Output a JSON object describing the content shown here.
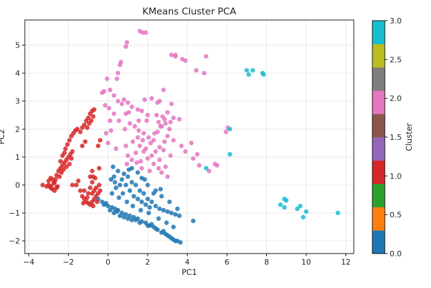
{
  "chart_data": {
    "type": "scatter",
    "title": "KMeans Cluster PCA",
    "xlabel": "PC1",
    "ylabel": "PC2",
    "xlim": [
      -4.2,
      12.4
    ],
    "ylim": [
      -2.45,
      5.9
    ],
    "xticks": [
      -4,
      -2,
      0,
      2,
      4,
      6,
      8,
      10,
      12
    ],
    "yticks": [
      -2,
      -1,
      0,
      1,
      2,
      3,
      4,
      5
    ],
    "grid": true,
    "colorbar": {
      "label": "Cluster",
      "range": [
        0.0,
        3.0
      ],
      "ticks": [
        "0.0",
        "0.5",
        "1.0",
        "1.5",
        "2.0",
        "2.5",
        "3.0"
      ],
      "colors": [
        "#1f77b4",
        "#ff7f0e",
        "#2ca02c",
        "#d62728",
        "#9467bd",
        "#8c564b",
        "#e377c2",
        "#7f7f7f",
        "#bcbd22",
        "#17becf"
      ]
    },
    "series": [
      {
        "cluster": 0,
        "color": "#1f77b4",
        "points": [
          [
            -0.5,
            -0.5
          ],
          [
            -0.3,
            -0.6
          ],
          [
            -0.2,
            -0.7
          ],
          [
            0.0,
            -0.75
          ],
          [
            0.2,
            -0.8
          ],
          [
            0.35,
            -0.85
          ],
          [
            0.5,
            -0.9
          ],
          [
            0.7,
            -1.0
          ],
          [
            0.9,
            -1.05
          ],
          [
            1.1,
            -1.1
          ],
          [
            1.3,
            -1.15
          ],
          [
            1.5,
            -1.2
          ],
          [
            1.7,
            -1.3
          ],
          [
            1.9,
            -1.35
          ],
          [
            2.1,
            -1.45
          ],
          [
            2.3,
            -1.5
          ],
          [
            2.5,
            -1.6
          ],
          [
            2.7,
            -1.7
          ],
          [
            2.9,
            -1.75
          ],
          [
            3.1,
            -1.85
          ],
          [
            3.3,
            -1.95
          ],
          [
            3.5,
            -2.0
          ],
          [
            3.65,
            -2.05
          ],
          [
            0.1,
            -0.9
          ],
          [
            0.3,
            -1.0
          ],
          [
            0.6,
            -1.1
          ],
          [
            0.8,
            -1.15
          ],
          [
            1.0,
            -1.2
          ],
          [
            1.2,
            -1.25
          ],
          [
            1.6,
            -1.35
          ],
          [
            2.0,
            -1.45
          ],
          [
            2.4,
            -1.55
          ],
          [
            2.8,
            -1.65
          ],
          [
            3.0,
            -1.8
          ],
          [
            3.2,
            -1.9
          ],
          [
            3.4,
            -2.0
          ],
          [
            -0.1,
            -0.65
          ],
          [
            0.45,
            -0.95
          ],
          [
            1.4,
            -1.25
          ],
          [
            2.2,
            -1.4
          ],
          [
            0.2,
            -0.3
          ],
          [
            0.4,
            -0.1
          ],
          [
            0.6,
            0.0
          ],
          [
            0.3,
            0.3
          ],
          [
            0.5,
            0.5
          ],
          [
            0.7,
            0.2
          ],
          [
            0.9,
            0.0
          ],
          [
            1.1,
            -0.2
          ],
          [
            1.3,
            -0.4
          ],
          [
            1.5,
            -0.5
          ],
          [
            1.7,
            -0.6
          ],
          [
            1.9,
            -0.7
          ],
          [
            2.1,
            -0.8
          ],
          [
            0.8,
            0.4
          ],
          [
            1.0,
            0.3
          ],
          [
            1.2,
            0.1
          ],
          [
            1.4,
            0.0
          ],
          [
            1.6,
            -0.2
          ],
          [
            1.8,
            -0.3
          ],
          [
            2.0,
            -0.5
          ],
          [
            2.2,
            -0.6
          ],
          [
            2.4,
            -0.75
          ],
          [
            2.6,
            -0.85
          ],
          [
            2.8,
            -0.9
          ],
          [
            3.0,
            -0.95
          ],
          [
            3.2,
            -1.0
          ],
          [
            3.4,
            -1.05
          ],
          [
            3.6,
            -1.1
          ],
          [
            0.25,
            0.65
          ],
          [
            1.2,
            0.6
          ],
          [
            1.5,
            0.45
          ],
          [
            1.7,
            0.25
          ],
          [
            2.0,
            0.0
          ],
          [
            2.4,
            -0.2
          ],
          [
            2.7,
            -0.4
          ],
          [
            3.1,
            -0.6
          ],
          [
            3.5,
            -0.85
          ],
          [
            0.35,
            0.1
          ],
          [
            0.55,
            -0.45
          ],
          [
            0.95,
            -0.6
          ],
          [
            1.25,
            -0.75
          ],
          [
            1.65,
            -0.9
          ],
          [
            2.05,
            -1.0
          ],
          [
            2.55,
            -1.2
          ],
          [
            2.95,
            -1.35
          ],
          [
            3.3,
            -1.5
          ],
          [
            0.15,
            0.2
          ],
          [
            0.75,
            -0.3
          ],
          [
            1.05,
            0.55
          ],
          [
            1.85,
            0.2
          ],
          [
            2.3,
            -0.3
          ],
          [
            2.65,
            -0.15
          ],
          [
            4.3,
            -1.28
          ]
        ]
      },
      {
        "cluster": 1,
        "color": "#d62728",
        "points": [
          [
            -3.3,
            0.0
          ],
          [
            -3.1,
            -0.05
          ],
          [
            -3.0,
            0.0
          ],
          [
            -2.9,
            -0.1
          ],
          [
            -2.8,
            -0.15
          ],
          [
            -2.7,
            -0.2
          ],
          [
            -2.6,
            -0.1
          ],
          [
            -2.7,
            0.1
          ],
          [
            -2.8,
            0.2
          ],
          [
            -2.9,
            0.25
          ],
          [
            -2.6,
            0.35
          ],
          [
            -2.5,
            0.5
          ],
          [
            -2.4,
            0.6
          ],
          [
            -2.3,
            0.7
          ],
          [
            -2.2,
            0.8
          ],
          [
            -2.1,
            0.9
          ],
          [
            -2.0,
            1.0
          ],
          [
            -1.9,
            1.1
          ],
          [
            -1.8,
            1.2
          ],
          [
            -2.15,
            1.3
          ],
          [
            -2.05,
            1.45
          ],
          [
            -1.95,
            1.6
          ],
          [
            -1.85,
            1.75
          ],
          [
            -1.75,
            1.85
          ],
          [
            -1.65,
            1.95
          ],
          [
            -1.55,
            2.0
          ],
          [
            -1.4,
            1.9
          ],
          [
            -1.3,
            2.05
          ],
          [
            -1.2,
            2.15
          ],
          [
            -1.1,
            2.3
          ],
          [
            -1.0,
            2.4
          ],
          [
            -0.9,
            2.55
          ],
          [
            -0.8,
            2.65
          ],
          [
            -0.7,
            2.7
          ],
          [
            -0.75,
            2.45
          ],
          [
            -0.85,
            2.3
          ],
          [
            -0.95,
            2.2
          ],
          [
            -1.05,
            2.05
          ],
          [
            -1.3,
            1.4
          ],
          [
            -1.15,
            1.55
          ],
          [
            -0.5,
            1.4
          ],
          [
            -0.4,
            1.6
          ],
          [
            -3.0,
            0.15
          ],
          [
            -2.9,
            -0.05
          ],
          [
            -2.75,
            0.05
          ],
          [
            -2.65,
            0.2
          ],
          [
            -2.55,
            -0.05
          ],
          [
            -2.45,
            0.3
          ],
          [
            -2.35,
            0.45
          ],
          [
            -2.25,
            0.55
          ],
          [
            -2.1,
            0.65
          ],
          [
            -1.95,
            0.75
          ],
          [
            -1.85,
            0.95
          ],
          [
            -2.3,
            1.05
          ],
          [
            -2.2,
            1.15
          ],
          [
            -2.4,
            0.85
          ],
          [
            -1.3,
            -0.4
          ],
          [
            -1.2,
            -0.5
          ],
          [
            -1.1,
            -0.6
          ],
          [
            -1.0,
            -0.65
          ],
          [
            -0.9,
            -0.7
          ],
          [
            -0.8,
            -0.6
          ],
          [
            -0.7,
            -0.5
          ],
          [
            -0.6,
            -0.4
          ],
          [
            -0.8,
            -0.3
          ],
          [
            -1.0,
            -0.3
          ],
          [
            -0.9,
            -0.1
          ],
          [
            -0.7,
            -0.2
          ],
          [
            -0.5,
            -0.3
          ],
          [
            -0.6,
            -0.1
          ],
          [
            -0.8,
            0.1
          ],
          [
            -0.9,
            0.3
          ],
          [
            -0.65,
            0.25
          ],
          [
            -0.45,
            0.0
          ],
          [
            -1.6,
            0.0
          ],
          [
            -1.8,
            0.0
          ],
          [
            -1.4,
            -0.2
          ],
          [
            -1.5,
            0.15
          ],
          [
            -1.2,
            -0.2
          ],
          [
            -1.05,
            -0.45
          ],
          [
            -0.75,
            -0.75
          ],
          [
            -0.55,
            -0.6
          ],
          [
            -1.25,
            -0.65
          ],
          [
            -0.4,
            -0.2
          ],
          [
            -0.8,
            0.5
          ],
          [
            -0.75,
            0.3
          ],
          [
            -0.45,
            0.6
          ]
        ]
      },
      {
        "cluster": 2,
        "color": "#e377c2",
        "points": [
          [
            1.6,
            5.5
          ],
          [
            1.75,
            5.45
          ],
          [
            1.9,
            5.45
          ],
          [
            0.95,
            5.1
          ],
          [
            0.9,
            4.95
          ],
          [
            0.65,
            4.4
          ],
          [
            0.6,
            4.3
          ],
          [
            0.5,
            4.0
          ],
          [
            0.45,
            3.8
          ],
          [
            -0.05,
            3.8
          ],
          [
            3.2,
            4.65
          ],
          [
            3.4,
            4.6
          ],
          [
            3.4,
            4.65
          ],
          [
            3.75,
            4.5
          ],
          [
            3.9,
            4.45
          ],
          [
            4.45,
            4.1
          ],
          [
            4.85,
            4.0
          ],
          [
            4.95,
            4.6
          ],
          [
            -0.3,
            3.3
          ],
          [
            -0.2,
            3.35
          ],
          [
            0.1,
            3.4
          ],
          [
            0.3,
            3.2
          ],
          [
            0.5,
            3.0
          ],
          [
            0.7,
            2.9
          ],
          [
            0.8,
            3.05
          ],
          [
            1.0,
            2.95
          ],
          [
            1.2,
            2.8
          ],
          [
            1.5,
            2.7
          ],
          [
            1.7,
            2.65
          ],
          [
            2.0,
            2.5
          ],
          [
            1.85,
            3.05
          ],
          [
            2.2,
            3.1
          ],
          [
            2.5,
            2.95
          ],
          [
            2.8,
            3.4
          ],
          [
            2.6,
            3.0
          ],
          [
            3.2,
            2.9
          ],
          [
            -0.15,
            2.85
          ],
          [
            0.05,
            2.75
          ],
          [
            0.3,
            2.55
          ],
          [
            0.55,
            2.3
          ],
          [
            0.85,
            2.0
          ],
          [
            1.1,
            2.2
          ],
          [
            1.35,
            2.1
          ],
          [
            1.55,
            1.95
          ],
          [
            1.8,
            1.85
          ],
          [
            2.05,
            1.7
          ],
          [
            2.3,
            1.6
          ],
          [
            2.5,
            1.9
          ],
          [
            2.7,
            2.1
          ],
          [
            2.9,
            2.2
          ],
          [
            3.1,
            2.0
          ],
          [
            3.0,
            1.75
          ],
          [
            2.85,
            1.55
          ],
          [
            2.6,
            1.35
          ],
          [
            2.4,
            1.2
          ],
          [
            2.2,
            1.05
          ],
          [
            2.0,
            0.95
          ],
          [
            1.8,
            1.2
          ],
          [
            1.6,
            1.4
          ],
          [
            1.4,
            1.15
          ],
          [
            1.2,
            0.9
          ],
          [
            1.0,
            1.05
          ],
          [
            0.9,
            1.4
          ],
          [
            1.25,
            1.55
          ],
          [
            1.5,
            1.7
          ],
          [
            1.65,
            0.85
          ],
          [
            1.9,
            1.3
          ],
          [
            2.15,
            1.5
          ],
          [
            2.35,
            1.85
          ],
          [
            2.55,
            2.25
          ],
          [
            2.75,
            2.45
          ],
          [
            3.0,
            2.6
          ],
          [
            3.3,
            2.4
          ],
          [
            3.6,
            2.35
          ],
          [
            3.3,
            1.6
          ],
          [
            3.7,
            1.4
          ],
          [
            3.9,
            1.2
          ],
          [
            4.2,
            1.5
          ],
          [
            4.5,
            1.1
          ],
          [
            2.8,
            1.25
          ],
          [
            2.6,
            0.9
          ],
          [
            2.3,
            0.75
          ],
          [
            2.9,
            0.65
          ],
          [
            3.15,
            1.05
          ],
          [
            4.3,
            0.95
          ],
          [
            3.0,
            0.3
          ],
          [
            0.1,
            2.3
          ],
          [
            0.15,
            1.95
          ],
          [
            -0.1,
            1.85
          ],
          [
            0.9,
            2.55
          ],
          [
            1.05,
            2.6
          ],
          [
            1.55,
            2.3
          ],
          [
            1.95,
            2.3
          ],
          [
            2.45,
            2.5
          ],
          [
            2.85,
            2.35
          ],
          [
            3.15,
            2.25
          ],
          [
            0.95,
            0.75
          ],
          [
            1.45,
            0.8
          ],
          [
            1.7,
            0.6
          ],
          [
            2.55,
            0.6
          ],
          [
            2.1,
            0.5
          ],
          [
            2.7,
            0.45
          ],
          [
            4.6,
            0.7
          ],
          [
            5.1,
            0.5
          ],
          [
            5.5,
            0.7
          ],
          [
            5.4,
            0.75
          ],
          [
            5.95,
            1.9
          ],
          [
            6.05,
            2.05
          ],
          [
            0.0,
            1.5
          ],
          [
            0.4,
            1.3
          ],
          [
            2.65,
            2.1
          ],
          [
            1.75,
            1.6
          ]
        ]
      },
      {
        "cluster": 3,
        "color": "#17becf",
        "points": [
          [
            7.0,
            4.1
          ],
          [
            7.1,
            3.95
          ],
          [
            7.3,
            4.1
          ],
          [
            7.8,
            4.0
          ],
          [
            7.85,
            3.95
          ],
          [
            6.15,
            2.0
          ],
          [
            6.15,
            1.1
          ],
          [
            4.95,
            0.6
          ],
          [
            8.7,
            -0.7
          ],
          [
            8.9,
            -0.5
          ],
          [
            9.0,
            -0.55
          ],
          [
            8.9,
            -0.8
          ],
          [
            9.55,
            -0.85
          ],
          [
            9.7,
            -0.75
          ],
          [
            9.85,
            -1.15
          ],
          [
            10.0,
            -0.95
          ],
          [
            11.6,
            -1.0
          ]
        ]
      }
    ]
  }
}
